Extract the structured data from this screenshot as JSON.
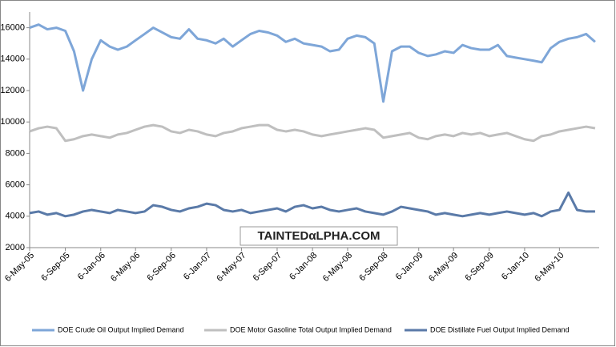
{
  "chart_data": {
    "type": "line",
    "watermark": "TAINTEDαLPHA.COM",
    "x": [
      "6-May-05",
      "6-Jun-05",
      "6-Jul-05",
      "6-Aug-05",
      "6-Sep-05",
      "6-Oct-05",
      "6-Nov-05",
      "6-Dec-05",
      "6-Jan-06",
      "6-Feb-06",
      "6-Mar-06",
      "6-Apr-06",
      "6-May-06",
      "6-Jun-06",
      "6-Jul-06",
      "6-Aug-06",
      "6-Sep-06",
      "6-Oct-06",
      "6-Nov-06",
      "6-Dec-06",
      "6-Jan-07",
      "6-Feb-07",
      "6-Mar-07",
      "6-Apr-07",
      "6-May-07",
      "6-Jun-07",
      "6-Jul-07",
      "6-Aug-07",
      "6-Sep-07",
      "6-Oct-07",
      "6-Nov-07",
      "6-Dec-07",
      "6-Jan-08",
      "6-Feb-08",
      "6-Mar-08",
      "6-Apr-08",
      "6-May-08",
      "6-Jun-08",
      "6-Jul-08",
      "6-Aug-08",
      "6-Sep-08",
      "6-Oct-08",
      "6-Nov-08",
      "6-Dec-08",
      "6-Jan-09",
      "6-Feb-09",
      "6-Mar-09",
      "6-Apr-09",
      "6-May-09",
      "6-Jun-09",
      "6-Jul-09",
      "6-Aug-09",
      "6-Sep-09",
      "6-Oct-09",
      "6-Nov-09",
      "6-Dec-09",
      "6-Jan-10",
      "6-Feb-10",
      "6-Mar-10",
      "6-Apr-10",
      "6-May-10",
      "6-Jun-10",
      "6-Jul-10",
      "6-Aug-10",
      "6-Sep-10"
    ],
    "xlim": [
      "6-May-05",
      "20-Sep-10"
    ],
    "xticks": [
      "6-May-05",
      "6-Sep-05",
      "6-Jan-06",
      "6-May-06",
      "6-Sep-06",
      "6-Jan-07",
      "6-May-07",
      "6-Sep-07",
      "6-Jan-08",
      "6-May-08",
      "6-Sep-08",
      "6-Jan-09",
      "6-May-09",
      "6-Sep-09",
      "6-Jan-10",
      "6-May-10"
    ],
    "ylim": [
      2000,
      17000
    ],
    "yticks": [
      2000,
      4000,
      6000,
      8000,
      10000,
      12000,
      14000,
      16000
    ],
    "series": [
      {
        "name": "DOE Crude Oil Output Implied Demand",
        "color": "#7ea6d8",
        "values": [
          16000,
          16200,
          15900,
          16000,
          15800,
          14500,
          12000,
          14000,
          15200,
          14800,
          14600,
          14800,
          15200,
          15600,
          16000,
          15700,
          15400,
          15300,
          15900,
          15300,
          15200,
          15000,
          15300,
          14800,
          15200,
          15600,
          15800,
          15700,
          15500,
          15100,
          15300,
          15000,
          14900,
          14800,
          14500,
          14600,
          15300,
          15500,
          15400,
          15000,
          11300,
          14500,
          14800,
          14800,
          14400,
          14200,
          14300,
          14500,
          14400,
          14900,
          14700,
          14600,
          14600,
          14900,
          14200,
          14100,
          14000,
          13900,
          13800,
          14700,
          15100,
          15300,
          15400,
          15600,
          15100
        ]
      },
      {
        "name": "DOE Motor Gasoline Total Output Implied Demand",
        "color": "#bfbfbf",
        "values": [
          9400,
          9600,
          9700,
          9600,
          8800,
          8900,
          9100,
          9200,
          9100,
          9000,
          9200,
          9300,
          9500,
          9700,
          9800,
          9700,
          9400,
          9300,
          9500,
          9400,
          9200,
          9100,
          9300,
          9400,
          9600,
          9700,
          9800,
          9800,
          9500,
          9400,
          9500,
          9400,
          9200,
          9100,
          9200,
          9300,
          9400,
          9500,
          9600,
          9500,
          9000,
          9100,
          9200,
          9300,
          9000,
          8900,
          9100,
          9200,
          9100,
          9300,
          9200,
          9300,
          9100,
          9200,
          9300,
          9100,
          8900,
          8800,
          9100,
          9200,
          9400,
          9500,
          9600,
          9700,
          9600
        ]
      },
      {
        "name": "DOE Distillate Fuel Output Implied Demand",
        "color": "#5a7aa8",
        "values": [
          4200,
          4300,
          4100,
          4200,
          4000,
          4100,
          4300,
          4400,
          4300,
          4200,
          4400,
          4300,
          4200,
          4300,
          4700,
          4600,
          4400,
          4300,
          4500,
          4600,
          4800,
          4700,
          4400,
          4300,
          4400,
          4200,
          4300,
          4400,
          4500,
          4300,
          4600,
          4700,
          4500,
          4600,
          4400,
          4300,
          4400,
          4500,
          4300,
          4200,
          4100,
          4300,
          4600,
          4500,
          4400,
          4300,
          4100,
          4200,
          4100,
          4000,
          4100,
          4200,
          4100,
          4200,
          4300,
          4200,
          4100,
          4200,
          4000,
          4300,
          4400,
          5500,
          4400,
          4300,
          4300
        ]
      }
    ]
  }
}
